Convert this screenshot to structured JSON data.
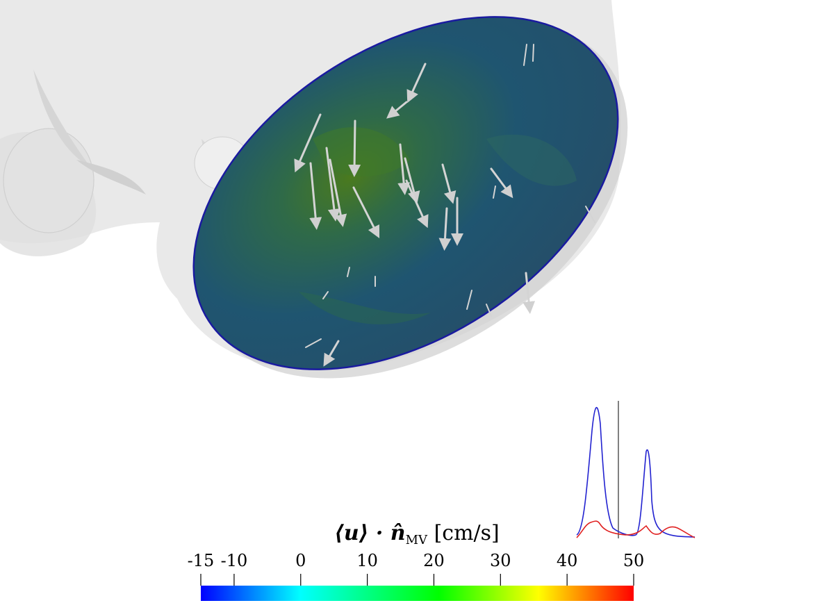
{
  "colorbar": {
    "label_prefix": "⟨u⟩ · n̂",
    "label_subscript": "MV",
    "label_unit": "[cm/s]",
    "min": -15,
    "max": 50,
    "ticks": [
      "-15",
      "-10",
      "0",
      "10",
      "20",
      "30",
      "40",
      "50"
    ],
    "tick_values": [
      -15,
      -10,
      0,
      10,
      20,
      30,
      40,
      50
    ],
    "colors": [
      "#0000ff",
      "#00ffff",
      "#00ff00",
      "#ffff00",
      "#ff0000"
    ]
  },
  "inset_plot": {
    "series_colors": [
      "#1f1fd6",
      "#e02020"
    ],
    "time_marker_color": "#000000"
  },
  "colors": {
    "surface": "#e6e6e6",
    "valve_fill": "#1f4d6e",
    "valve_rim": "#1a1aa0",
    "arrows": "#d9d9d9"
  }
}
